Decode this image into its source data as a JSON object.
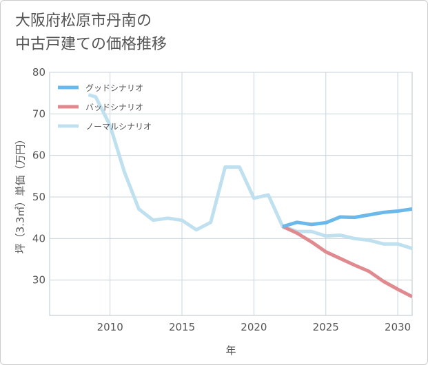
{
  "title": {
    "line1": "大阪府松原市丹南の",
    "line2": "中古戸建ての価格推移"
  },
  "chart_data": {
    "type": "line",
    "xlabel": "年",
    "ylabel": "坪（3.3㎡）単価（万円）",
    "xlim": [
      2005.8,
      2031
    ],
    "ylim": [
      21.5,
      80
    ],
    "x_ticks": [
      2010,
      2015,
      2020,
      2025,
      2030
    ],
    "y_ticks": [
      30,
      40,
      50,
      60,
      70,
      80
    ],
    "grid": true,
    "legend_position": "top-left",
    "series": [
      {
        "name": "グッドシナリオ",
        "color": "#6bb9ea",
        "x": [
          2022,
          2023,
          2024,
          2025,
          2026,
          2027,
          2028,
          2029,
          2030,
          2031
        ],
        "y": [
          42.9,
          43.9,
          43.4,
          43.8,
          45.2,
          45.1,
          45.7,
          46.3,
          46.6,
          47.1
        ]
      },
      {
        "name": "バッドシナリオ",
        "color": "#e08a8f",
        "x": [
          2022,
          2023,
          2024,
          2025,
          2026,
          2027,
          2028,
          2029,
          2030,
          2031
        ],
        "y": [
          42.9,
          41.3,
          39.2,
          36.8,
          35.2,
          33.6,
          32.1,
          29.7,
          27.8,
          26.0
        ]
      },
      {
        "name": "ノーマルシナリオ",
        "color": "#bfe0ee",
        "x": [
          2008.5,
          2009,
          2010,
          2011,
          2012,
          2013,
          2014,
          2015,
          2016,
          2017,
          2018,
          2019,
          2020,
          2021,
          2022,
          2023,
          2024,
          2025,
          2026,
          2027,
          2028,
          2029,
          2030,
          2031
        ],
        "y": [
          74.6,
          74.1,
          67.2,
          56.0,
          47.1,
          44.4,
          44.9,
          44.4,
          42.1,
          43.9,
          57.2,
          57.2,
          49.7,
          50.5,
          42.9,
          41.7,
          41.7,
          40.6,
          40.8,
          40.0,
          39.6,
          38.7,
          38.7,
          37.6
        ]
      }
    ]
  }
}
